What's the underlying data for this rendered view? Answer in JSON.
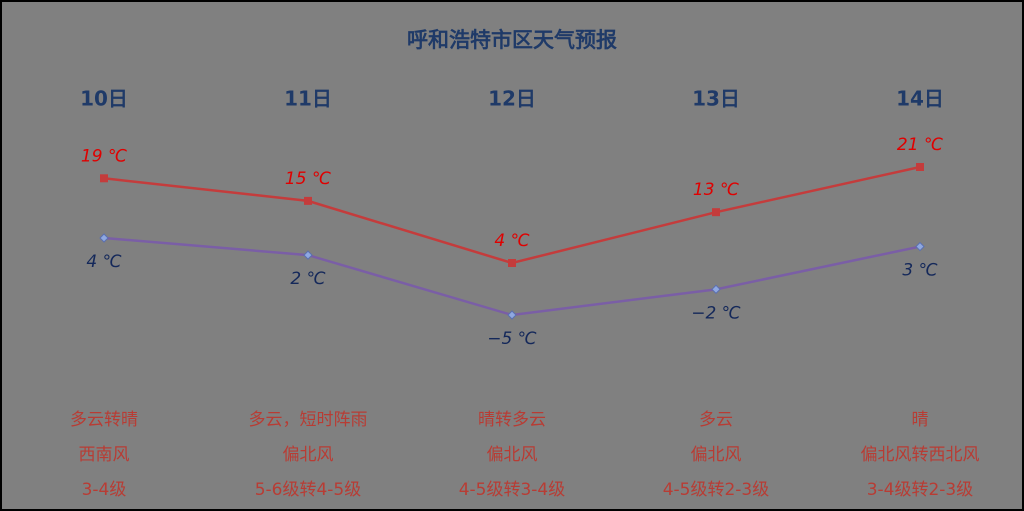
{
  "chart_data": {
    "type": "line",
    "title": "呼和浩特市区天气预报",
    "categories": [
      "10日",
      "11日",
      "12日",
      "13日",
      "14日"
    ],
    "series": [
      {
        "name": "最高气温",
        "color": "#c43c3c",
        "label_color": "#e00000",
        "values": [
          19,
          15,
          4,
          13,
          21
        ],
        "value_labels": [
          "19 ℃",
          "15 ℃",
          "4 ℃",
          "13 ℃",
          "21 ℃"
        ]
      },
      {
        "name": "最低气温",
        "color": "#7a5ea6",
        "label_color": "#14285a",
        "values": [
          4,
          2,
          -5,
          -2,
          3
        ],
        "value_labels": [
          "4 ℃",
          "2 ℃",
          "−5 ℃",
          "−2 ℃",
          "3 ℃"
        ]
      }
    ],
    "weather": [
      [
        "多云转晴",
        "西南风",
        "3-4级"
      ],
      [
        "多云，短时阵雨",
        "偏北风",
        "5-6级转4-5级"
      ],
      [
        "晴转多云",
        "偏北风",
        "4-5级转3-4级"
      ],
      [
        "多云",
        "偏北风",
        "4-5级转2-3级"
      ],
      [
        "晴",
        "偏北风转西北风",
        "3-4级转2-3级"
      ]
    ]
  }
}
